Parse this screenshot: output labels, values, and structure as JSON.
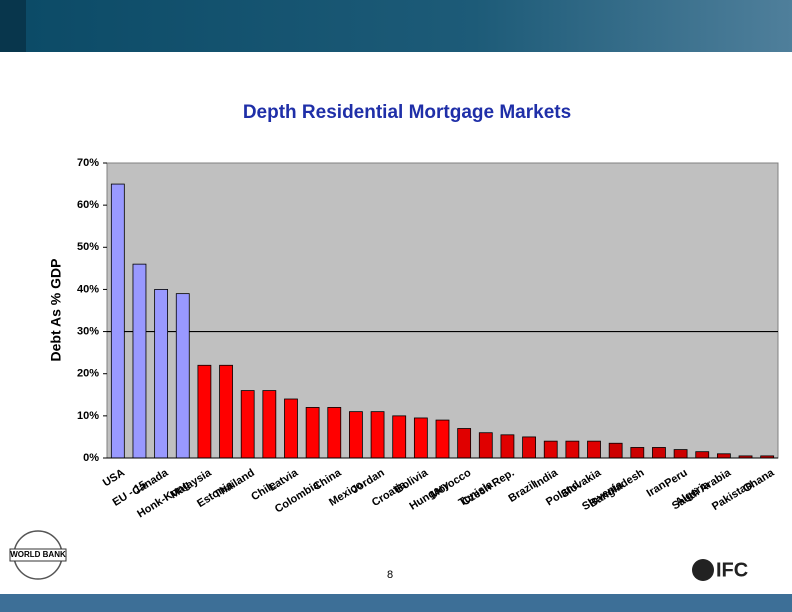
{
  "chart_data": {
    "type": "bar",
    "title": "Depth Residential Mortgage Markets",
    "y_label": "Debt As % GDP",
    "categories": [
      "USA",
      "EU - 15",
      "Canada",
      "Honk-Kong",
      "Malaysia",
      "Estonia",
      "Thailand",
      "Chile",
      "Latvia",
      "Colombia",
      "China",
      "Mexico",
      "Jordan",
      "Croatia",
      "Bolivia",
      "Hungary",
      "Morocco",
      "Tunisia",
      "Czech Rep.",
      "Brazil",
      "India",
      "Poland",
      "Slovakia",
      "Slovenia",
      "Bangladesh",
      "Iran",
      "Peru",
      "Algeria",
      "Saudi Arabia",
      "Pakistan",
      "Ghana"
    ],
    "values": [
      65,
      46,
      40,
      39,
      22,
      22,
      16,
      16,
      14,
      12,
      12,
      11,
      11,
      10,
      9.5,
      9,
      7,
      6,
      5.5,
      5,
      4,
      4,
      4,
      3.5,
      2.5,
      2.5,
      2,
      1.5,
      1,
      0.5,
      0.5
    ],
    "colors": [
      "#9999ff",
      "#9999ff",
      "#9999ff",
      "#9999ff",
      "#ff0000",
      "#ff0000",
      "#ff0000",
      "#ff0000",
      "#ff0000",
      "#ff0000",
      "#ff0000",
      "#ff0000",
      "#ff0000",
      "#ff0000",
      "#ff0000",
      "#ff0000",
      "#e00000",
      "#e00000",
      "#e00000",
      "#e00000",
      "#e00000",
      "#e00000",
      "#e00000",
      "#cc0000",
      "#cc0000",
      "#cc0000",
      "#cc0000",
      "#cc0000",
      "#cc0000",
      "#cc0000",
      "#cc0000"
    ],
    "ylim": [
      0,
      70
    ],
    "yticks": [
      {
        "value": 0,
        "label": "0%"
      },
      {
        "value": 10,
        "label": "10%"
      },
      {
        "value": 20,
        "label": "20%"
      },
      {
        "value": 30,
        "label": "30%"
      },
      {
        "value": 40,
        "label": "40%"
      },
      {
        "value": 50,
        "label": "50%"
      },
      {
        "value": 60,
        "label": "60%"
      },
      {
        "value": 70,
        "label": "70%"
      }
    ],
    "reference_line": 30,
    "plot_background": "#c0c0c0"
  },
  "footer": {
    "page_number": "8",
    "left_logo": "WORLD BANK",
    "right_logo": "IFC"
  }
}
